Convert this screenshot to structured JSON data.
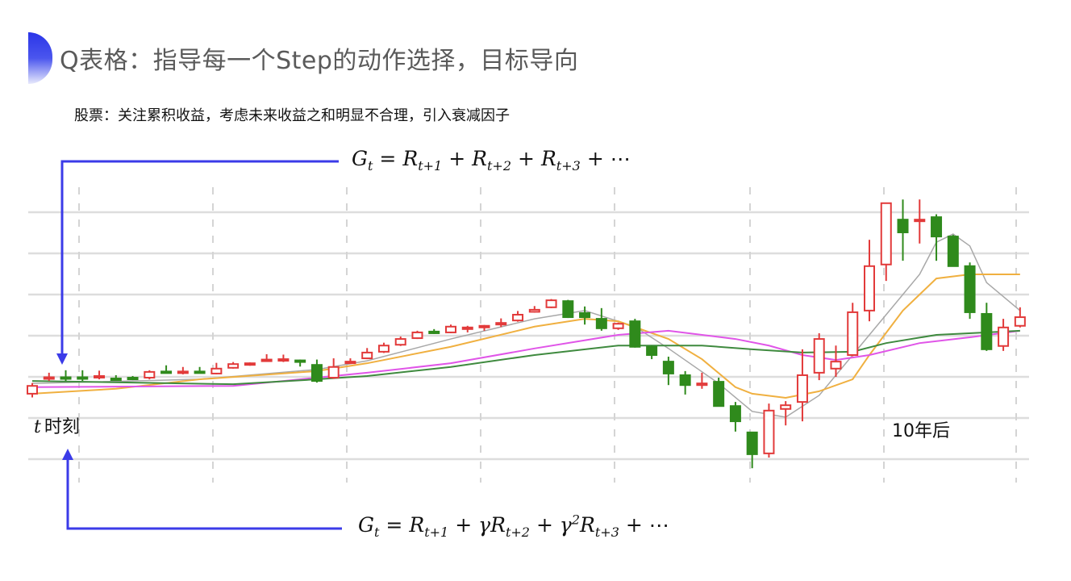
{
  "slide": {
    "title": "Q表格：指导每一个Step的动作选择，目标导向",
    "subtitle": "股票：关注累积收益，考虑未来收益之和明显不合理，引入衰减因子",
    "accent_color": "#2a35e8",
    "arrow_color": "#3b3be8"
  },
  "formulas": {
    "top": [
      {
        "base": "G",
        "sub": "t"
      },
      {
        "op": "="
      },
      {
        "base": "R",
        "sub": "t+1"
      },
      {
        "op": "+"
      },
      {
        "base": "R",
        "sub": "t+2"
      },
      {
        "op": "+"
      },
      {
        "base": "R",
        "sub": "t+3"
      },
      {
        "op": "+ ⋯"
      }
    ],
    "bottom": [
      {
        "base": "G",
        "sub": "t"
      },
      {
        "op": "="
      },
      {
        "base": "R",
        "sub": "t+1"
      },
      {
        "op": "+"
      },
      {
        "base": "γR",
        "sub": "t+2"
      },
      {
        "op": "+"
      },
      {
        "base": "γ",
        "sup": "2"
      },
      {
        "base": "R",
        "sub": "t+3"
      },
      {
        "op": "+ ⋯"
      }
    ]
  },
  "labels": {
    "t_symbol": "t",
    "t_text": "时刻",
    "later": "10年后"
  },
  "chart_data": {
    "type": "candlestick",
    "grid": true,
    "colors": {
      "up": "#e23a3a",
      "down": "#2f8a1c",
      "grid": "#dddddd"
    },
    "candles_ohlc": [
      [
        15.9,
        18.5,
        15.0,
        17.8
      ],
      [
        19.6,
        21.0,
        19.0,
        19.9
      ],
      [
        19.9,
        21.6,
        19.0,
        19.7
      ],
      [
        19.9,
        21.6,
        19.0,
        19.7
      ],
      [
        20.0,
        21.5,
        19.4,
        20.2
      ],
      [
        19.6,
        20.4,
        19.2,
        19.3
      ],
      [
        19.8,
        20.2,
        19.2,
        19.5
      ],
      [
        19.8,
        21.6,
        19.4,
        21.2
      ],
      [
        21.3,
        22.8,
        20.9,
        21.1
      ],
      [
        21.0,
        22.4,
        20.6,
        21.3
      ],
      [
        21.3,
        22.4,
        20.9,
        21.1
      ],
      [
        20.8,
        23.4,
        20.6,
        22.0
      ],
      [
        22.2,
        23.6,
        22.0,
        23.1
      ],
      [
        23.1,
        23.5,
        22.7,
        23.3
      ],
      [
        24.0,
        25.5,
        23.9,
        24.2
      ],
      [
        24.1,
        25.4,
        23.6,
        24.3
      ],
      [
        24.0,
        24.2,
        22.5,
        23.8
      ],
      [
        22.9,
        24.2,
        18.6,
        19.0
      ],
      [
        19.8,
        24.5,
        19.5,
        22.4
      ],
      [
        23.4,
        24.5,
        23.3,
        23.7
      ],
      [
        24.5,
        27.0,
        24.3,
        25.9
      ],
      [
        26.1,
        28.3,
        25.8,
        27.6
      ],
      [
        27.8,
        29.8,
        27.5,
        29.2
      ],
      [
        29.4,
        31.2,
        29.2,
        30.8
      ],
      [
        31.0,
        31.6,
        30.4,
        30.6
      ],
      [
        30.8,
        32.7,
        30.6,
        32.2
      ],
      [
        31.9,
        32.4,
        30.8,
        32.0
      ],
      [
        32.3,
        32.6,
        31.2,
        32.4
      ],
      [
        32.9,
        34.2,
        32.1,
        33.1
      ],
      [
        33.7,
        36.0,
        33.4,
        35.1
      ],
      [
        35.8,
        37.2,
        35.6,
        36.3
      ],
      [
        36.9,
        38.9,
        36.7,
        38.6
      ],
      [
        38.4,
        38.7,
        34.3,
        34.5
      ],
      [
        35.5,
        37.1,
        32.7,
        34.5
      ],
      [
        34.1,
        36.7,
        31.2,
        31.8
      ],
      [
        31.8,
        33.2,
        31.4,
        32.9
      ],
      [
        33.5,
        34.1,
        27.1,
        27.3
      ],
      [
        27.3,
        27.6,
        24.3,
        25.3
      ],
      [
        23.7,
        24.9,
        18.0,
        20.8
      ],
      [
        20.4,
        21.4,
        15.7,
        18.0
      ],
      [
        18.0,
        21.0,
        17.1,
        18.4
      ],
      [
        18.8,
        19.8,
        12.9,
        12.9
      ],
      [
        12.9,
        13.9,
        6.7,
        9.2
      ],
      [
        6.5,
        6.5,
        -2.2,
        1.2
      ],
      [
        1.4,
        13.5,
        0.4,
        11.8
      ],
      [
        12.2,
        14.1,
        8.2,
        13.1
      ],
      [
        13.9,
        26.7,
        9.2,
        20.4
      ],
      [
        21.0,
        30.6,
        19.2,
        29.2
      ],
      [
        22.0,
        27.6,
        20.0,
        23.7
      ],
      [
        25.3,
        38.0,
        25.0,
        35.7
      ],
      [
        36.1,
        53.3,
        33.5,
        46.9
      ],
      [
        47.3,
        62.2,
        43.3,
        62.2
      ],
      [
        58.2,
        63.1,
        48.2,
        55.1
      ],
      [
        58.0,
        63.1,
        52.4,
        58.2
      ],
      [
        58.8,
        59.5,
        48.2,
        54.1
      ],
      [
        54.1,
        54.5,
        46.9,
        46.9
      ],
      [
        46.9,
        47.8,
        34.1,
        35.7
      ],
      [
        35.3,
        38.0,
        26.3,
        26.7
      ],
      [
        27.5,
        34.1,
        26.3,
        32.0
      ],
      [
        32.4,
        36.9,
        32.0,
        34.5
      ]
    ],
    "moving_averages": [
      {
        "color": "#a8a8a8",
        "points": [
          [
            0,
            18.4
          ],
          [
            10,
            19.4
          ],
          [
            17,
            21.8
          ],
          [
            20,
            23.9
          ],
          [
            25,
            29.2
          ],
          [
            30,
            34.1
          ],
          [
            33,
            36.1
          ],
          [
            36,
            32.2
          ],
          [
            38,
            26.9
          ],
          [
            41,
            18.4
          ],
          [
            43,
            11.6
          ],
          [
            45,
            10.2
          ],
          [
            47,
            15.5
          ],
          [
            49,
            25.3
          ],
          [
            51,
            35.1
          ],
          [
            53,
            44.9
          ],
          [
            54,
            52.7
          ],
          [
            55,
            54.7
          ],
          [
            56,
            51.8
          ],
          [
            57,
            42.9
          ],
          [
            59,
            36.1
          ]
        ]
      },
      {
        "color": "#f0b040",
        "points": [
          [
            0,
            15.9
          ],
          [
            5,
            17.1
          ],
          [
            10,
            19.4
          ],
          [
            17,
            21.4
          ],
          [
            20,
            23.3
          ],
          [
            25,
            27.3
          ],
          [
            30,
            32.2
          ],
          [
            33,
            34.1
          ],
          [
            35,
            33.5
          ],
          [
            38,
            29.2
          ],
          [
            40,
            24.3
          ],
          [
            42,
            17.5
          ],
          [
            43,
            15.9
          ],
          [
            45,
            14.9
          ],
          [
            47,
            16.5
          ],
          [
            49,
            19.4
          ],
          [
            50,
            25.3
          ],
          [
            52,
            36.1
          ],
          [
            54,
            43.9
          ],
          [
            56,
            44.9
          ],
          [
            59,
            44.9
          ]
        ]
      },
      {
        "color": "#e055e8",
        "points": [
          [
            0,
            17.5
          ],
          [
            12,
            17.8
          ],
          [
            17,
            19.8
          ],
          [
            20,
            21.0
          ],
          [
            25,
            23.3
          ],
          [
            30,
            26.9
          ],
          [
            35,
            30.2
          ],
          [
            38,
            31.2
          ],
          [
            42,
            29.2
          ],
          [
            44,
            27.6
          ],
          [
            46,
            25.3
          ],
          [
            48,
            24.1
          ],
          [
            50,
            25.3
          ],
          [
            53,
            28.2
          ],
          [
            56,
            29.6
          ],
          [
            59,
            31.2
          ]
        ]
      },
      {
        "color": "#3f8a3f",
        "points": [
          [
            0,
            19.0
          ],
          [
            12,
            18.2
          ],
          [
            17,
            19.4
          ],
          [
            20,
            20.2
          ],
          [
            25,
            22.4
          ],
          [
            30,
            25.3
          ],
          [
            35,
            27.6
          ],
          [
            40,
            27.6
          ],
          [
            43,
            26.7
          ],
          [
            46,
            25.9
          ],
          [
            49,
            26.1
          ],
          [
            51,
            28.2
          ],
          [
            54,
            30.2
          ],
          [
            59,
            31.2
          ]
        ]
      }
    ]
  }
}
